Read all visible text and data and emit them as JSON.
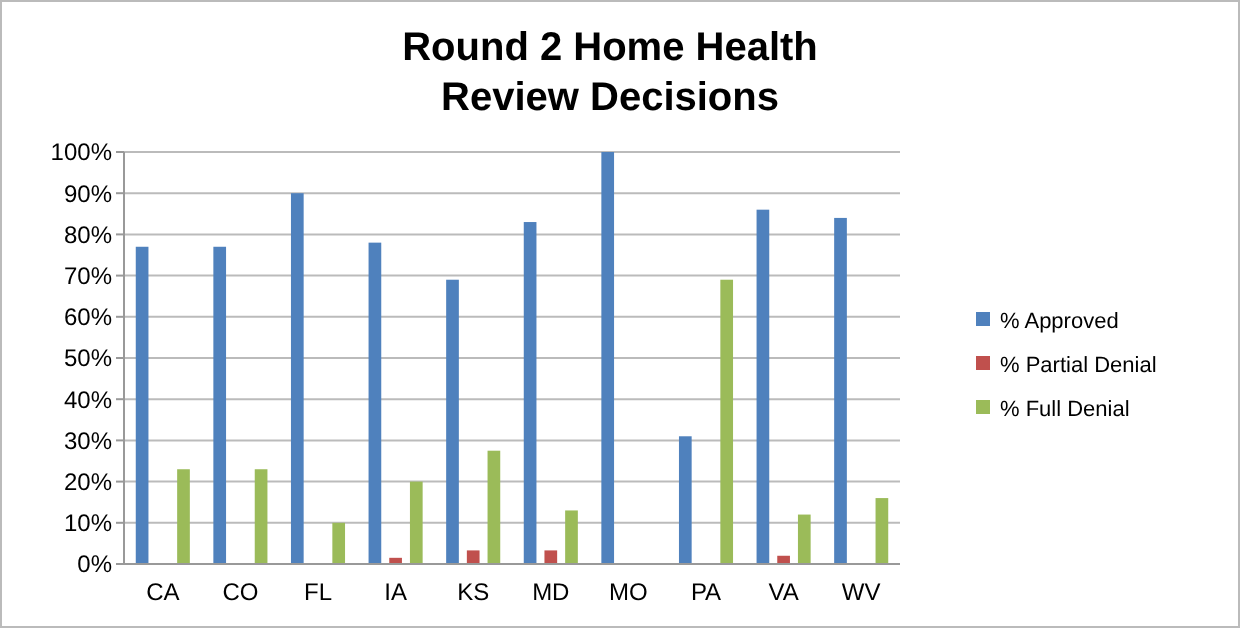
{
  "chart_data": {
    "type": "bar",
    "title": "Round 2 Home Health\nReview Decisions",
    "categories": [
      "CA",
      "CO",
      "FL",
      "IA",
      "KS",
      "MD",
      "MO",
      "PA",
      "VA",
      "WV"
    ],
    "series": [
      {
        "name": "% Approved",
        "color": "#4f81bd",
        "values": [
          77,
          77,
          90,
          78,
          69,
          83,
          100,
          31,
          86,
          84
        ]
      },
      {
        "name": "% Partial Denial",
        "color": "#c0504d",
        "values": [
          0,
          0,
          0,
          1.5,
          3.3,
          3.3,
          0,
          0,
          2,
          0
        ]
      },
      {
        "name": "% Full Denial",
        "color": "#9bbb59",
        "values": [
          23,
          23,
          10,
          20,
          27.5,
          13,
          0,
          69,
          12,
          16
        ]
      }
    ],
    "ylim": [
      0,
      100
    ],
    "yticks": [
      {
        "value": 0,
        "label": "0%"
      },
      {
        "value": 10,
        "label": "10%"
      },
      {
        "value": 20,
        "label": "20%"
      },
      {
        "value": 30,
        "label": "30%"
      },
      {
        "value": 40,
        "label": "40%"
      },
      {
        "value": 50,
        "label": "50%"
      },
      {
        "value": 60,
        "label": "60%"
      },
      {
        "value": 70,
        "label": "70%"
      },
      {
        "value": 80,
        "label": "80%"
      },
      {
        "value": 90,
        "label": "90%"
      },
      {
        "value": 100,
        "label": "100%"
      }
    ],
    "grid": "y",
    "legend": "right"
  }
}
